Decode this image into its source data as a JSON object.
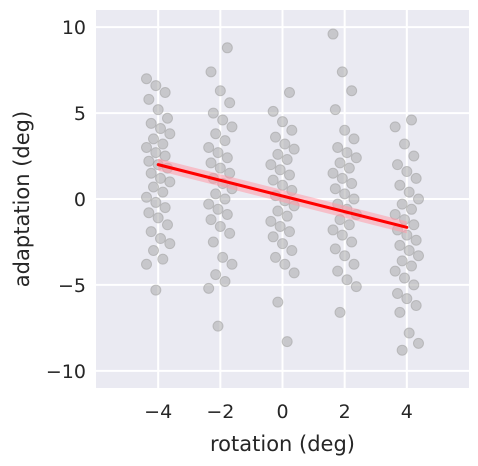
{
  "colors": {
    "plot_background": "#eaeaf2",
    "grid": "#ffffff",
    "points": "#a3a3a3",
    "regression_line": "#ff0000",
    "confidence_band": "#ff9aa8",
    "text": "#262626"
  },
  "chart_data": {
    "type": "scatter",
    "title": "",
    "xlabel": "rotation (deg)",
    "ylabel": "adaptation (deg)",
    "xlim": [
      -6,
      6
    ],
    "ylim": [
      -11,
      11
    ],
    "xticks": [
      -4,
      -2,
      0,
      2,
      4
    ],
    "xtick_labels": [
      "−4",
      "−2",
      "0",
      "2",
      "4"
    ],
    "yticks": [
      -10,
      -5,
      0,
      5,
      10
    ],
    "ytick_labels": [
      "−10",
      "−5",
      "0",
      "5",
      "10"
    ],
    "grid": true,
    "legend": "none",
    "points": [
      {
        "x": -4,
        "y": 7.0
      },
      {
        "x": -4,
        "y": 6.6
      },
      {
        "x": -4,
        "y": 6.2
      },
      {
        "x": -4,
        "y": 5.8
      },
      {
        "x": -4,
        "y": 5.2
      },
      {
        "x": -4,
        "y": 4.7
      },
      {
        "x": -4,
        "y": 4.4
      },
      {
        "x": -4,
        "y": 4.1
      },
      {
        "x": -4,
        "y": 3.8
      },
      {
        "x": -4,
        "y": 3.5
      },
      {
        "x": -4,
        "y": 3.2
      },
      {
        "x": -4,
        "y": 3.0
      },
      {
        "x": -4,
        "y": 2.7
      },
      {
        "x": -4,
        "y": 2.5
      },
      {
        "x": -4,
        "y": 2.2
      },
      {
        "x": -4,
        "y": 2.0
      },
      {
        "x": -4,
        "y": 1.8
      },
      {
        "x": -4,
        "y": 1.5
      },
      {
        "x": -4,
        "y": 1.2
      },
      {
        "x": -4,
        "y": 1.0
      },
      {
        "x": -4,
        "y": 0.7
      },
      {
        "x": -4,
        "y": 0.4
      },
      {
        "x": -4,
        "y": 0.1
      },
      {
        "x": -4,
        "y": -0.2
      },
      {
        "x": -4,
        "y": -0.5
      },
      {
        "x": -4,
        "y": -0.8
      },
      {
        "x": -4,
        "y": -1.1
      },
      {
        "x": -4,
        "y": -1.5
      },
      {
        "x": -4,
        "y": -1.9
      },
      {
        "x": -4,
        "y": -2.3
      },
      {
        "x": -4,
        "y": -2.6
      },
      {
        "x": -4,
        "y": -3.0
      },
      {
        "x": -4,
        "y": -3.5
      },
      {
        "x": -4,
        "y": -3.8
      },
      {
        "x": -4,
        "y": -5.3
      },
      {
        "x": -2,
        "y": 8.8
      },
      {
        "x": -2,
        "y": 7.4
      },
      {
        "x": -2,
        "y": 6.3
      },
      {
        "x": -2,
        "y": 5.6
      },
      {
        "x": -2,
        "y": 5.0
      },
      {
        "x": -2,
        "y": 4.6
      },
      {
        "x": -2,
        "y": 4.2
      },
      {
        "x": -2,
        "y": 3.8
      },
      {
        "x": -2,
        "y": 3.4
      },
      {
        "x": -2,
        "y": 3.0
      },
      {
        "x": -2,
        "y": 2.7
      },
      {
        "x": -2,
        "y": 2.4
      },
      {
        "x": -2,
        "y": 2.1
      },
      {
        "x": -2,
        "y": 1.8
      },
      {
        "x": -2,
        "y": 1.5
      },
      {
        "x": -2,
        "y": 1.2
      },
      {
        "x": -2,
        "y": 0.9
      },
      {
        "x": -2,
        "y": 0.6
      },
      {
        "x": -2,
        "y": 0.3
      },
      {
        "x": -2,
        "y": 0.0
      },
      {
        "x": -2,
        "y": -0.3
      },
      {
        "x": -2,
        "y": -0.6
      },
      {
        "x": -2,
        "y": -0.9
      },
      {
        "x": -2,
        "y": -1.2
      },
      {
        "x": -2,
        "y": -1.6
      },
      {
        "x": -2,
        "y": -2.0
      },
      {
        "x": -2,
        "y": -2.5
      },
      {
        "x": -2,
        "y": -3.4
      },
      {
        "x": -2,
        "y": -3.8
      },
      {
        "x": -2,
        "y": -4.4
      },
      {
        "x": -2,
        "y": -4.8
      },
      {
        "x": -2,
        "y": -5.2
      },
      {
        "x": -2,
        "y": -7.4
      },
      {
        "x": 0,
        "y": 6.2
      },
      {
        "x": 0,
        "y": 5.1
      },
      {
        "x": 0,
        "y": 4.5
      },
      {
        "x": 0,
        "y": 4.0
      },
      {
        "x": 0,
        "y": 3.6
      },
      {
        "x": 0,
        "y": 3.2
      },
      {
        "x": 0,
        "y": 2.9
      },
      {
        "x": 0,
        "y": 2.6
      },
      {
        "x": 0,
        "y": 2.3
      },
      {
        "x": 0,
        "y": 2.0
      },
      {
        "x": 0,
        "y": 1.7
      },
      {
        "x": 0,
        "y": 1.4
      },
      {
        "x": 0,
        "y": 1.1
      },
      {
        "x": 0,
        "y": 0.8
      },
      {
        "x": 0,
        "y": 0.5
      },
      {
        "x": 0,
        "y": 0.2
      },
      {
        "x": 0,
        "y": -0.1
      },
      {
        "x": 0,
        "y": -0.4
      },
      {
        "x": 0,
        "y": -0.7
      },
      {
        "x": 0,
        "y": -1.0
      },
      {
        "x": 0,
        "y": -1.3
      },
      {
        "x": 0,
        "y": -1.6
      },
      {
        "x": 0,
        "y": -1.9
      },
      {
        "x": 0,
        "y": -2.2
      },
      {
        "x": 0,
        "y": -2.6
      },
      {
        "x": 0,
        "y": -3.0
      },
      {
        "x": 0,
        "y": -3.4
      },
      {
        "x": 0,
        "y": -3.8
      },
      {
        "x": 0,
        "y": -4.3
      },
      {
        "x": 0,
        "y": -6.0
      },
      {
        "x": 0,
        "y": -8.3
      },
      {
        "x": 2,
        "y": 9.6
      },
      {
        "x": 2,
        "y": 7.4
      },
      {
        "x": 2,
        "y": 6.3
      },
      {
        "x": 2,
        "y": 5.2
      },
      {
        "x": 2,
        "y": 4.0
      },
      {
        "x": 2,
        "y": 3.5
      },
      {
        "x": 2,
        "y": 3.0
      },
      {
        "x": 2,
        "y": 2.7
      },
      {
        "x": 2,
        "y": 2.4
      },
      {
        "x": 2,
        "y": 2.1
      },
      {
        "x": 2,
        "y": 1.8
      },
      {
        "x": 2,
        "y": 1.5
      },
      {
        "x": 2,
        "y": 1.2
      },
      {
        "x": 2,
        "y": 0.9
      },
      {
        "x": 2,
        "y": 0.6
      },
      {
        "x": 2,
        "y": 0.3
      },
      {
        "x": 2,
        "y": 0.0
      },
      {
        "x": 2,
        "y": -0.3
      },
      {
        "x": 2,
        "y": -0.6
      },
      {
        "x": 2,
        "y": -0.9
      },
      {
        "x": 2,
        "y": -1.2
      },
      {
        "x": 2,
        "y": -1.5
      },
      {
        "x": 2,
        "y": -1.8
      },
      {
        "x": 2,
        "y": -2.1
      },
      {
        "x": 2,
        "y": -2.5
      },
      {
        "x": 2,
        "y": -2.9
      },
      {
        "x": 2,
        "y": -3.3
      },
      {
        "x": 2,
        "y": -3.8
      },
      {
        "x": 2,
        "y": -4.2
      },
      {
        "x": 2,
        "y": -4.7
      },
      {
        "x": 2,
        "y": -5.1
      },
      {
        "x": 2,
        "y": -6.6
      },
      {
        "x": 4,
        "y": 4.6
      },
      {
        "x": 4,
        "y": 4.2
      },
      {
        "x": 4,
        "y": 3.2
      },
      {
        "x": 4,
        "y": 2.5
      },
      {
        "x": 4,
        "y": 2.0
      },
      {
        "x": 4,
        "y": 1.6
      },
      {
        "x": 4,
        "y": 1.2
      },
      {
        "x": 4,
        "y": 0.8
      },
      {
        "x": 4,
        "y": 0.4
      },
      {
        "x": 4,
        "y": 0.0
      },
      {
        "x": 4,
        "y": -0.3
      },
      {
        "x": 4,
        "y": -0.6
      },
      {
        "x": 4,
        "y": -0.9
      },
      {
        "x": 4,
        "y": -1.2
      },
      {
        "x": 4,
        "y": -1.5
      },
      {
        "x": 4,
        "y": -1.8
      },
      {
        "x": 4,
        "y": -2.1
      },
      {
        "x": 4,
        "y": -2.4
      },
      {
        "x": 4,
        "y": -2.7
      },
      {
        "x": 4,
        "y": -3.0
      },
      {
        "x": 4,
        "y": -3.3
      },
      {
        "x": 4,
        "y": -3.6
      },
      {
        "x": 4,
        "y": -3.9
      },
      {
        "x": 4,
        "y": -4.2
      },
      {
        "x": 4,
        "y": -4.6
      },
      {
        "x": 4,
        "y": -5.0
      },
      {
        "x": 4,
        "y": -5.5
      },
      {
        "x": 4,
        "y": -5.8
      },
      {
        "x": 4,
        "y": -6.2
      },
      {
        "x": 4,
        "y": -6.6
      },
      {
        "x": 4,
        "y": -7.8
      },
      {
        "x": 4,
        "y": -8.4
      },
      {
        "x": 4,
        "y": -8.8
      }
    ],
    "regression": {
      "x_start": -4,
      "y_start": 2.0,
      "x_end": 4,
      "y_end": -1.65,
      "ci_halfwidth": 0.35
    }
  }
}
